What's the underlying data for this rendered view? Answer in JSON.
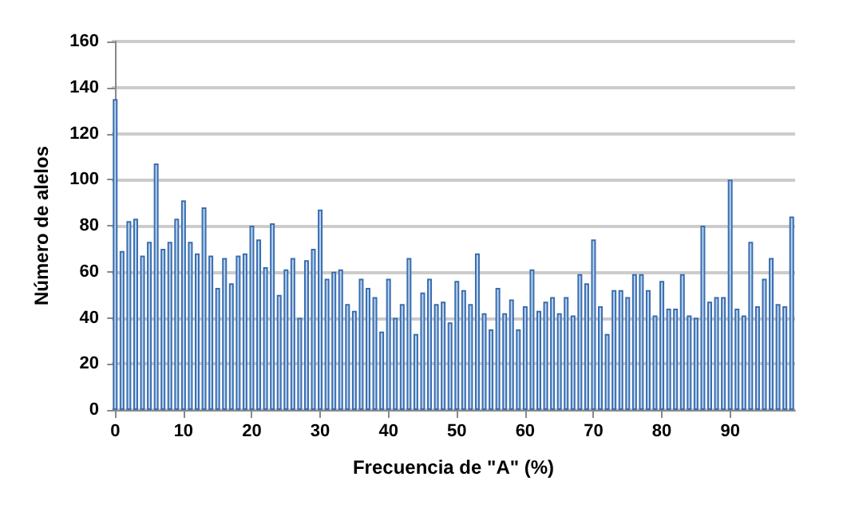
{
  "chart_data": {
    "type": "bar",
    "xlabel": "Frecuencia de \"A\" (%)",
    "ylabel": "Número de alelos",
    "x": [
      0,
      1,
      2,
      3,
      4,
      5,
      6,
      7,
      8,
      9,
      10,
      11,
      12,
      13,
      14,
      15,
      16,
      17,
      18,
      19,
      20,
      21,
      22,
      23,
      24,
      25,
      26,
      27,
      28,
      29,
      30,
      31,
      32,
      33,
      34,
      35,
      36,
      37,
      38,
      39,
      40,
      41,
      42,
      43,
      44,
      45,
      46,
      47,
      48,
      49,
      50,
      51,
      52,
      53,
      54,
      55,
      56,
      57,
      58,
      59,
      60,
      61,
      62,
      63,
      64,
      65,
      66,
      67,
      68,
      69,
      70,
      71,
      72,
      73,
      74,
      75,
      76,
      77,
      78,
      79,
      80,
      81,
      82,
      83,
      84,
      85,
      86,
      87,
      88,
      89,
      90,
      91,
      92,
      93,
      94,
      95,
      96,
      97,
      98,
      99
    ],
    "values": [
      135,
      69,
      82,
      83,
      67,
      73,
      107,
      70,
      73,
      83,
      91,
      73,
      68,
      88,
      67,
      53,
      66,
      55,
      67,
      68,
      80,
      74,
      62,
      81,
      50,
      61,
      66,
      40,
      65,
      70,
      87,
      57,
      60,
      61,
      46,
      43,
      57,
      53,
      49,
      34,
      57,
      40,
      46,
      66,
      33,
      51,
      57,
      46,
      47,
      38,
      56,
      52,
      46,
      68,
      42,
      35,
      53,
      42,
      48,
      35,
      45,
      61,
      43,
      47,
      49,
      42,
      49,
      41,
      59,
      55,
      74,
      45,
      33,
      52,
      52,
      49,
      59,
      59,
      52,
      41,
      56,
      44,
      44,
      59,
      41,
      40,
      80,
      47,
      49,
      49,
      100,
      44,
      41,
      73,
      45,
      57,
      66,
      46,
      45,
      84
    ],
    "color": "#bcd6ee",
    "xlim": [
      -0.5,
      99.5
    ],
    "xticks": [
      0,
      10,
      20,
      30,
      40,
      50,
      60,
      70,
      80,
      90
    ],
    "ylim": [
      0,
      160
    ],
    "yticks": [
      0,
      20,
      40,
      60,
      80,
      100,
      120,
      140,
      160
    ],
    "grid": "y"
  }
}
